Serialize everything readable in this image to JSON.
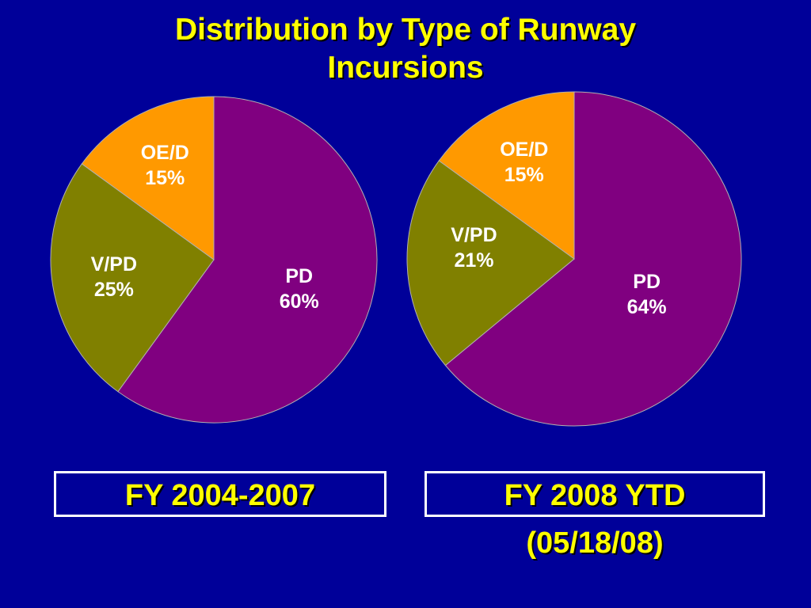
{
  "slide": {
    "title_line1": "Distribution by Type of Runway",
    "title_line2": "Incursions",
    "background_color": "#000099",
    "title_color": "#FFFF00"
  },
  "chart_data": [
    {
      "type": "pie",
      "caption": "FY 2004-2007",
      "slices": [
        {
          "key": "pd",
          "label": "PD",
          "value": 60,
          "value_label": "60%",
          "color": "#800080"
        },
        {
          "key": "vpd",
          "label": "V/PD",
          "value": 25,
          "value_label": "25%",
          "color": "#808000"
        },
        {
          "key": "oed",
          "label": "OE/D",
          "value": 15,
          "value_label": "15%",
          "color": "#FF9900"
        }
      ]
    },
    {
      "type": "pie",
      "caption": "FY 2008 YTD",
      "subcaption": "(05/18/08)",
      "slices": [
        {
          "key": "pd",
          "label": "PD",
          "value": 64,
          "value_label": "64%",
          "color": "#800080"
        },
        {
          "key": "vpd",
          "label": "V/PD",
          "value": 21,
          "value_label": "21%",
          "color": "#808000"
        },
        {
          "key": "oed",
          "label": "OE/D",
          "value": 15,
          "value_label": "15%",
          "color": "#FF9900"
        }
      ]
    }
  ]
}
